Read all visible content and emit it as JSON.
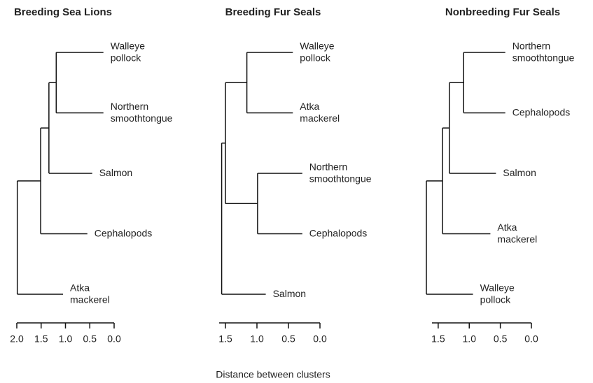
{
  "chart_data": [
    {
      "type": "dendrogram",
      "title": "Breeding Sea Lions",
      "xlim": [
        2.0,
        0
      ],
      "xticks": [
        {
          "value": 2.0,
          "label": "2.0"
        },
        {
          "value": 1.5,
          "label": "1.5"
        },
        {
          "value": 1.0,
          "label": "1.0"
        },
        0.5,
        {
          "value": 0,
          "label": "0.0"
        }
      ],
      "tree": {
        "height": 1.99,
        "children": [
          {
            "height": 1.51,
            "children": [
              {
                "height": 1.34,
                "children": [
                  {
                    "height": 1.19,
                    "children": [
                      {
                        "label": "Walleye pollock",
                        "end": 0.22
                      },
                      {
                        "label": "Northern smoothtongue",
                        "end": 0.22
                      }
                    ]
                  },
                  {
                    "label": "Salmon",
                    "end": 0.45
                  }
                ]
              },
              {
                "label": "Cephalopods",
                "end": 0.55
              }
            ]
          },
          {
            "label": "Atka mackerel",
            "end": 1.05
          }
        ]
      }
    },
    {
      "type": "dendrogram",
      "title": "Breeding Fur Seals",
      "xlim": [
        1.6,
        0
      ],
      "xticks": [
        {
          "value": 1.5,
          "label": "1.5"
        },
        {
          "value": 1.0,
          "label": "1.0"
        },
        0.5,
        {
          "value": 0,
          "label": "0.0"
        }
      ],
      "tree": {
        "height": 1.56,
        "children": [
          {
            "height": 1.5,
            "children": [
              {
                "height": 1.16,
                "children": [
                  {
                    "label": "Walleye pollock",
                    "end": 0.43
                  },
                  {
                    "label": "Atka mackerel",
                    "end": 0.43
                  }
                ]
              },
              {
                "height": 0.99,
                "children": [
                  {
                    "label": "Northern smoothtongue",
                    "end": 0.28
                  },
                  {
                    "label": "Cephalopods",
                    "end": 0.28
                  }
                ]
              }
            ]
          },
          {
            "label": "Salmon",
            "end": 0.86
          }
        ]
      }
    },
    {
      "type": "dendrogram",
      "title": "Nonbreeding Fur Seals",
      "xlim": [
        1.6,
        0
      ],
      "xticks": [
        {
          "value": 1.5,
          "label": "1.5"
        },
        {
          "value": 1.0,
          "label": "1.0"
        },
        0.5,
        {
          "value": 0,
          "label": "0.0"
        }
      ],
      "xlabel": "Distance between clusters",
      "tree": {
        "height": 1.69,
        "children": [
          {
            "height": 1.43,
            "children": [
              {
                "height": 1.32,
                "children": [
                  {
                    "height": 1.09,
                    "children": [
                      {
                        "label": "Northern smoothtongue",
                        "end": 0.42
                      },
                      {
                        "label": "Cephalopods",
                        "end": 0.42
                      }
                    ]
                  },
                  {
                    "label": "Salmon",
                    "end": 0.57
                  }
                ]
              },
              {
                "label": "Atka mackerel",
                "end": 0.66
              }
            ]
          },
          {
            "label": "Walleye pollock",
            "end": 0.94
          }
        ]
      }
    }
  ]
}
